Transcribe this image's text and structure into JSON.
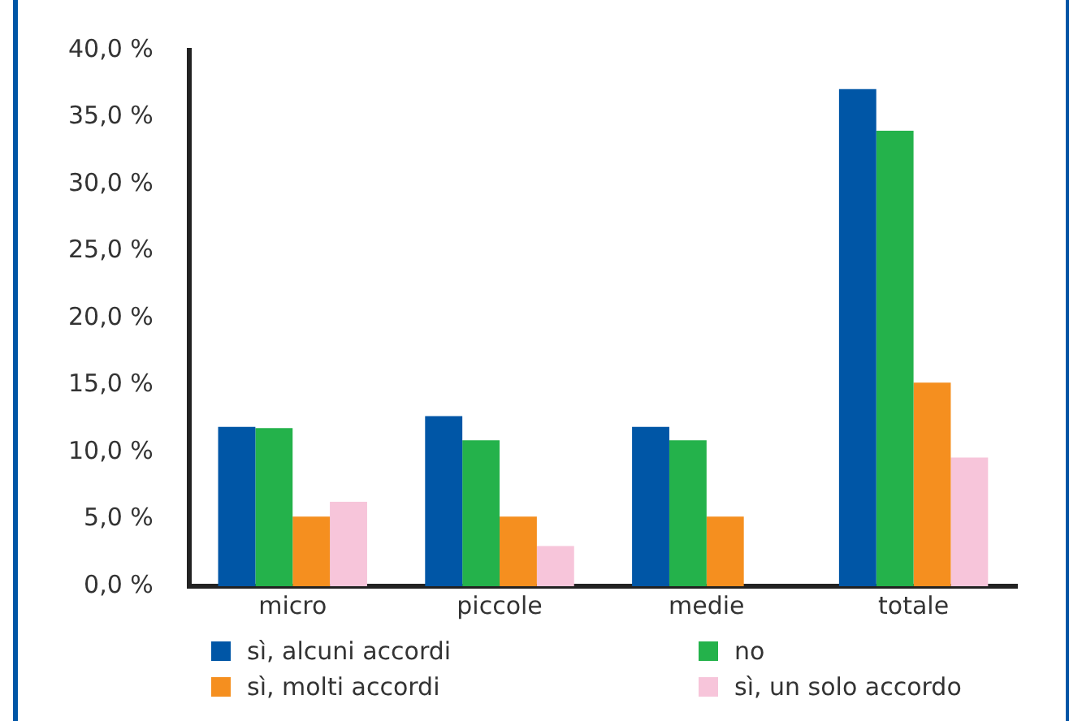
{
  "chart_data": {
    "type": "bar",
    "categories": [
      "micro",
      "piccole",
      "medie",
      "totale"
    ],
    "series": [
      {
        "name": "sì, alcuni accordi",
        "color": "#0056a6",
        "values": [
          11.9,
          12.7,
          11.9,
          37.1
        ]
      },
      {
        "name": "no",
        "color": "#24b24b",
        "values": [
          11.8,
          10.9,
          10.9,
          34.0
        ]
      },
      {
        "name": "sì, molti accordi",
        "color": "#f58f1f",
        "values": [
          5.2,
          5.2,
          5.2,
          15.2
        ]
      },
      {
        "name": "sì, un solo accordo",
        "color": "#f7c5da",
        "values": [
          6.3,
          3.0,
          null,
          9.6
        ]
      }
    ],
    "ylim": [
      0,
      40
    ],
    "yticks": [
      {
        "value": 0,
        "label": "0,0 %"
      },
      {
        "value": 5,
        "label": "5,0 %"
      },
      {
        "value": 10,
        "label": "10,0 %"
      },
      {
        "value": 15,
        "label": "15,0 %"
      },
      {
        "value": 20,
        "label": "20,0 %"
      },
      {
        "value": 25,
        "label": "25,0 %"
      },
      {
        "value": 30,
        "label": "30,0 %"
      },
      {
        "value": 35,
        "label": "35,0 %"
      },
      {
        "value": 40,
        "label": "40,0 %"
      }
    ],
    "grid": false,
    "legend": "bottom"
  }
}
